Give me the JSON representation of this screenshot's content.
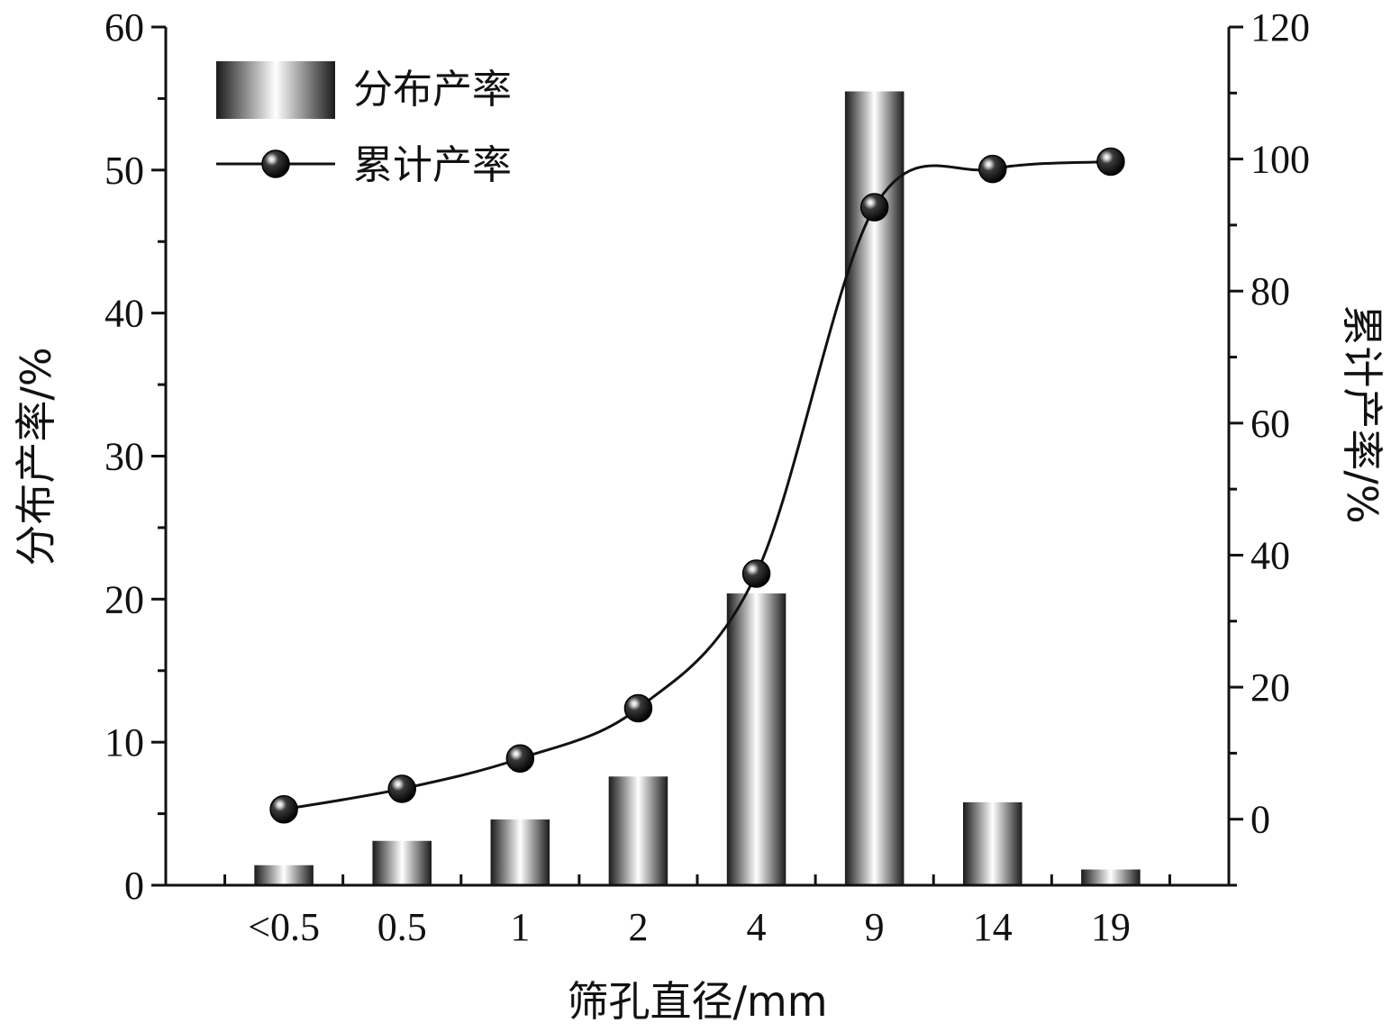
{
  "chart_data": {
    "type": "bar",
    "categories": [
      "<0.5",
      "0.5",
      "1",
      "2",
      "4",
      "9",
      "14",
      "19"
    ],
    "series": [
      {
        "name": "分布产率",
        "type": "bar",
        "axis": "left",
        "values": [
          1.4,
          3.1,
          4.6,
          7.6,
          20.4,
          55.5,
          5.8,
          1.1
        ]
      },
      {
        "name": "累计产率",
        "type": "line",
        "axis": "right",
        "values": [
          1.5,
          4.6,
          9.2,
          16.8,
          37.2,
          92.7,
          98.5,
          99.6
        ]
      }
    ],
    "xlabel": "筛孔直径/mm",
    "ylabel_left": "分布产率/%",
    "ylabel_right": "累计产率/%",
    "ylim_left": [
      0,
      60
    ],
    "yticks_left": [
      0,
      10,
      20,
      30,
      40,
      50,
      60
    ],
    "ylim_right": [
      -10,
      120
    ],
    "yticks_right": [
      0,
      20,
      40,
      60,
      80,
      100,
      120
    ],
    "legend_position": "top-left",
    "grid": false,
    "line_style": "smooth",
    "marker": "sphere",
    "colors": {
      "axis": "#111111",
      "line": "#111111",
      "bar_dark": "#1a1a1a",
      "bar_light": "#ffffff"
    }
  }
}
